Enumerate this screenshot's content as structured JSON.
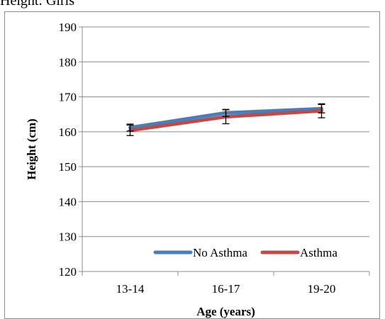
{
  "caption": "Height: Girls",
  "chart_data": {
    "type": "line",
    "categories": [
      "13-14",
      "16-17",
      "19-20"
    ],
    "series": [
      {
        "name": "No Asthma",
        "values": [
          161.2,
          165.4,
          166.6
        ],
        "error": [
          1.0,
          1.0,
          1.2
        ],
        "color": "#4a7ebb"
      },
      {
        "name": "Asthma",
        "values": [
          160.4,
          164.3,
          166.0
        ],
        "error": [
          1.5,
          2.0,
          2.0
        ],
        "color": "#be4b48"
      }
    ],
    "xlabel": "Age (years)",
    "ylabel": "Height (cm)",
    "ylim": [
      120,
      190
    ],
    "yticks": [
      120,
      130,
      140,
      150,
      160,
      170,
      180,
      190
    ],
    "grid": true,
    "legend": "bottom-right"
  }
}
